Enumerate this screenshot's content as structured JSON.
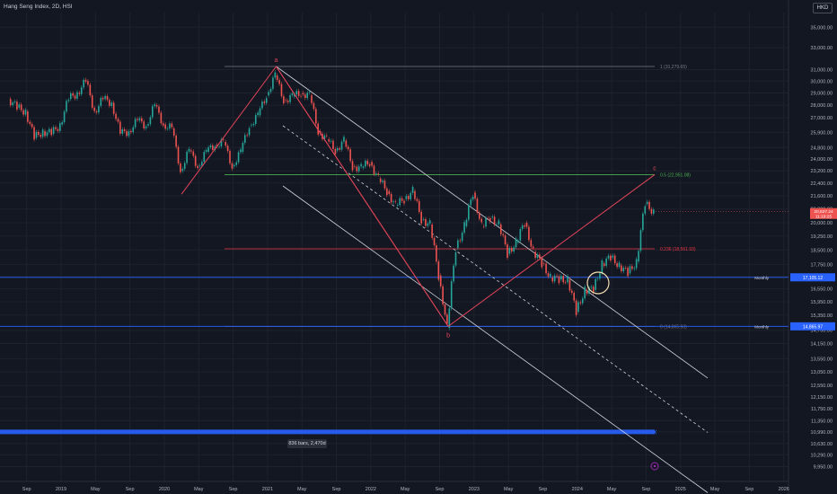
{
  "header": {
    "title": "Hang Seng Index, 2D, HSI",
    "currency": "HKD"
  },
  "colors": {
    "background": "#131722",
    "candle_up": "#26a69a",
    "candle_down": "#ef5350",
    "zigzag": "#e0445a",
    "channel": "#d1d4dc",
    "fib_top": "#787b86",
    "fib_618": "#4caf50",
    "fib_236": "#f23645",
    "fib_zero": "#787b86",
    "monthly_line": "#2962ff",
    "circle": "#f5deb3",
    "marker": "#9c27b0"
  },
  "chart_data": {
    "type": "candlestick",
    "title": "Hang Seng Index, 2D, HSI",
    "y_axis": {
      "ticks": [
        9950,
        10290,
        10630,
        10990,
        11350,
        11750,
        12150,
        12550,
        13050,
        13550,
        14150,
        14700,
        15350,
        15950,
        16550,
        17150,
        17750,
        18500,
        19250,
        20000,
        20800,
        21600,
        22400,
        23200,
        24000,
        24800,
        25900,
        27000,
        28000,
        29000,
        30000,
        31000,
        33000,
        35000
      ],
      "tick_labels": [
        "9,950.00",
        "10,290.00",
        "10,630.00",
        "10,990.00",
        "11,350.00",
        "11,750.00",
        "12,150.00",
        "12,550.00",
        "13,050.00",
        "13,550.00",
        "14,150.00",
        "14,700.00",
        "15,350.00",
        "15,950.00",
        "16,550.00",
        "17,150.00",
        "17,750.00",
        "18,500.00",
        "19,250.00",
        "20,000.00",
        "20,800.00",
        "21,600.00",
        "22,400.00",
        "23,200.00",
        "24,000.00",
        "24,800.00",
        "25,900.00",
        "27,000.00",
        "28,000.00",
        "29,000.00",
        "30,000.00",
        "31,000.00",
        "33,000.00",
        "35,000.00"
      ],
      "scale": "log"
    },
    "x_axis": {
      "ticks": [
        "2018-09",
        "2019-01",
        "2019-05",
        "2019-09",
        "2020-01",
        "2020-05",
        "2020-09",
        "2021-01",
        "2021-05",
        "2021-09",
        "2022-01",
        "2022-05",
        "2022-09",
        "2023-01",
        "2023-05",
        "2023-09",
        "2024-01",
        "2024-05",
        "2024-09",
        "2025-01",
        "2025-05",
        "2025-09",
        "2026-01"
      ],
      "tick_labels": [
        "Sep",
        "2019",
        "May",
        "Sep",
        "2020",
        "May",
        "Sep",
        "2021",
        "May",
        "Sep",
        "2022",
        "May",
        "Sep",
        "2023",
        "May",
        "Sep",
        "2024",
        "May",
        "Sep",
        "2025",
        "May",
        "Sep",
        "2026"
      ]
    },
    "series": [
      {
        "name": "Hang Seng Index",
        "points": [
          [
            "2018-07",
            28500
          ],
          [
            "2018-08",
            27800
          ],
          [
            "2018-09",
            27500
          ],
          [
            "2018-10",
            25500
          ],
          [
            "2018-11",
            26000
          ],
          [
            "2018-12",
            25800
          ],
          [
            "2019-01",
            26500
          ],
          [
            "2019-02",
            28500
          ],
          [
            "2019-03",
            29000
          ],
          [
            "2019-04",
            30000
          ],
          [
            "2019-05",
            27500
          ],
          [
            "2019-06",
            28500
          ],
          [
            "2019-07",
            28200
          ],
          [
            "2019-08",
            25800
          ],
          [
            "2019-09",
            26000
          ],
          [
            "2019-10",
            26800
          ],
          [
            "2019-11",
            26400
          ],
          [
            "2019-12",
            28000
          ],
          [
            "2020-01",
            26500
          ],
          [
            "2020-02",
            26200
          ],
          [
            "2020-03",
            23200
          ],
          [
            "2020-04",
            24600
          ],
          [
            "2020-05",
            23500
          ],
          [
            "2020-06",
            24500
          ],
          [
            "2020-07",
            25000
          ],
          [
            "2020-08",
            25200
          ],
          [
            "2020-09",
            23500
          ],
          [
            "2020-10",
            24500
          ],
          [
            "2020-11",
            26400
          ],
          [
            "2020-12",
            27200
          ],
          [
            "2021-01",
            28800
          ],
          [
            "2021-02",
            30500
          ],
          [
            "2021-03",
            28400
          ],
          [
            "2021-04",
            28700
          ],
          [
            "2021-05",
            29000
          ],
          [
            "2021-06",
            28800
          ],
          [
            "2021-07",
            26000
          ],
          [
            "2021-08",
            25400
          ],
          [
            "2021-09",
            24600
          ],
          [
            "2021-10",
            25300
          ],
          [
            "2021-11",
            23500
          ],
          [
            "2021-12",
            23400
          ],
          [
            "2022-01",
            23800
          ],
          [
            "2022-02",
            22700
          ],
          [
            "2022-03",
            21900
          ],
          [
            "2022-04",
            21000
          ],
          [
            "2022-05",
            21400
          ],
          [
            "2022-06",
            21900
          ],
          [
            "2022-07",
            20200
          ],
          [
            "2022-08",
            19900
          ],
          [
            "2022-09",
            17200
          ],
          [
            "2022-10",
            14800
          ],
          [
            "2022-11",
            18600
          ],
          [
            "2022-12",
            19800
          ],
          [
            "2023-01",
            21800
          ],
          [
            "2023-02",
            19800
          ],
          [
            "2023-03",
            20300
          ],
          [
            "2023-04",
            19900
          ],
          [
            "2023-05",
            18300
          ],
          [
            "2023-06",
            18900
          ],
          [
            "2023-07",
            20000
          ],
          [
            "2023-08",
            18400
          ],
          [
            "2023-09",
            17800
          ],
          [
            "2023-10",
            17100
          ],
          [
            "2023-11",
            17000
          ],
          [
            "2023-12",
            17000
          ],
          [
            "2024-01",
            15500
          ],
          [
            "2024-02",
            16500
          ],
          [
            "2024-03",
            16500
          ],
          [
            "2024-04",
            17800
          ],
          [
            "2024-05",
            18100
          ],
          [
            "2024-06",
            17700
          ],
          [
            "2024-07",
            17300
          ],
          [
            "2024-08",
            17900
          ],
          [
            "2024-09",
            21100
          ],
          [
            "2024-10",
            20637
          ]
        ]
      }
    ],
    "fib_levels": [
      {
        "label": "1 (31,279.65)",
        "value": 31279.65
      },
      {
        "label": "0.5 (22,951.08)",
        "value": 22951.08
      },
      {
        "label": "0.236 (18,561.93)",
        "value": 18561.93
      },
      {
        "label": "0 (14,865.93)",
        "value": 14865.93
      }
    ],
    "wave_labels": [
      {
        "label": "a",
        "date": "2021-02",
        "value": 31279.65
      },
      {
        "label": "b",
        "date": "2022-10",
        "value": 14865.93
      },
      {
        "label": "c",
        "date": "2024-10",
        "value": 22951.08
      }
    ],
    "horizontal_lines": [
      {
        "label": "Monthly",
        "value": 17105.12,
        "price_label": "17,105.12"
      },
      {
        "label": "Monthly",
        "value": 14865.97,
        "price_label": "14,865.97"
      }
    ],
    "support_zone": {
      "value": 10990
    },
    "current_price": {
      "value": 20637.24,
      "label": "20,637.24",
      "countdown": "11:19:25"
    },
    "bars_label": "836 bars, 2,470d",
    "legend": "none",
    "grid": true
  }
}
